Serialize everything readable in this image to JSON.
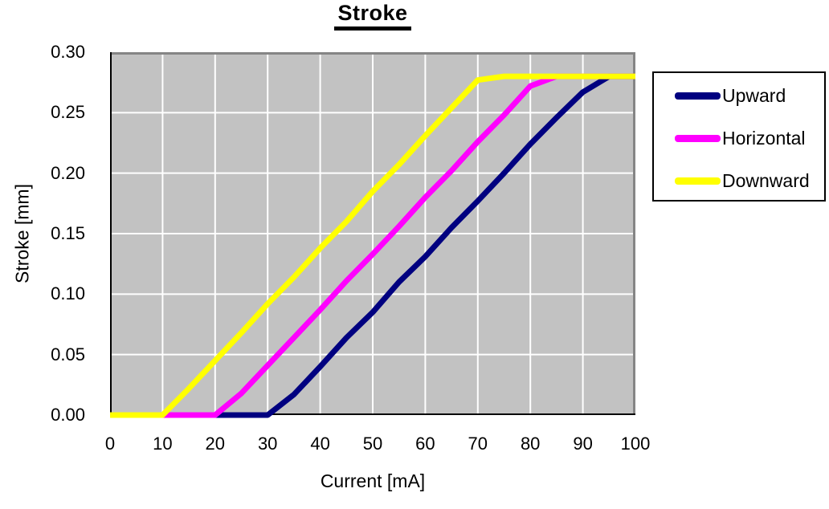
{
  "title": "Stroke",
  "axes": {
    "x": {
      "label": "Current [mA]",
      "min": 0,
      "max": 100,
      "ticks": [
        "0",
        "10",
        "20",
        "30",
        "40",
        "50",
        "60",
        "70",
        "80",
        "90",
        "100"
      ]
    },
    "y": {
      "label": "Stroke [mm]",
      "min": 0,
      "max": 0.3,
      "ticks": [
        "0.30",
        "0.25",
        "0.20",
        "0.15",
        "0.10",
        "0.05",
        "0.00"
      ]
    }
  },
  "colors": {
    "plot_bg": "#C2C2C2",
    "gridline": "#FFFFFF",
    "frame_shadow": "#858585",
    "axis": "#000000"
  },
  "chart_data": {
    "type": "line",
    "title": "Stroke",
    "xlabel": "Current [mA]",
    "ylabel": "Stroke [mm]",
    "xlim": [
      0,
      100
    ],
    "ylim": [
      0,
      0.3
    ],
    "grid": true,
    "grid_x_step": 10,
    "grid_y_step": 0.05,
    "legend_position": "right",
    "x": [
      0,
      5,
      10,
      15,
      20,
      25,
      30,
      35,
      40,
      45,
      50,
      55,
      60,
      65,
      70,
      75,
      80,
      85,
      90,
      95,
      100
    ],
    "series": [
      {
        "name": "Upward",
        "color": "#000080",
        "values": [
          0,
          0,
          0,
          0,
          0,
          0,
          0,
          0.017,
          0.04,
          0.064,
          0.085,
          0.11,
          0.131,
          0.155,
          0.177,
          0.2,
          0.224,
          0.246,
          0.267,
          0.28,
          0.28
        ]
      },
      {
        "name": "Horizontal",
        "color": "#FF00FF",
        "values": [
          0,
          0,
          0,
          0,
          0,
          0.018,
          0.041,
          0.064,
          0.087,
          0.111,
          0.133,
          0.156,
          0.18,
          0.202,
          0.226,
          0.248,
          0.272,
          0.28,
          0.28,
          0.28,
          0.28
        ]
      },
      {
        "name": "Downward",
        "color": "#FFFF00",
        "values": [
          0,
          0,
          0,
          0.022,
          0.045,
          0.068,
          0.092,
          0.114,
          0.138,
          0.16,
          0.185,
          0.207,
          0.231,
          0.254,
          0.277,
          0.28,
          0.28,
          0.28,
          0.28,
          0.28,
          0.28
        ]
      }
    ],
    "plateau_value": 0.28,
    "series_rise_start_mA": {
      "Upward": 31,
      "Horizontal": 21,
      "Downward": 10
    },
    "series_plateau_start_mA": {
      "Upward": 92,
      "Horizontal": 81,
      "Downward": 70
    }
  },
  "legend": {
    "items": [
      {
        "label": "Upward"
      },
      {
        "label": "Horizontal"
      },
      {
        "label": "Downward"
      }
    ]
  }
}
